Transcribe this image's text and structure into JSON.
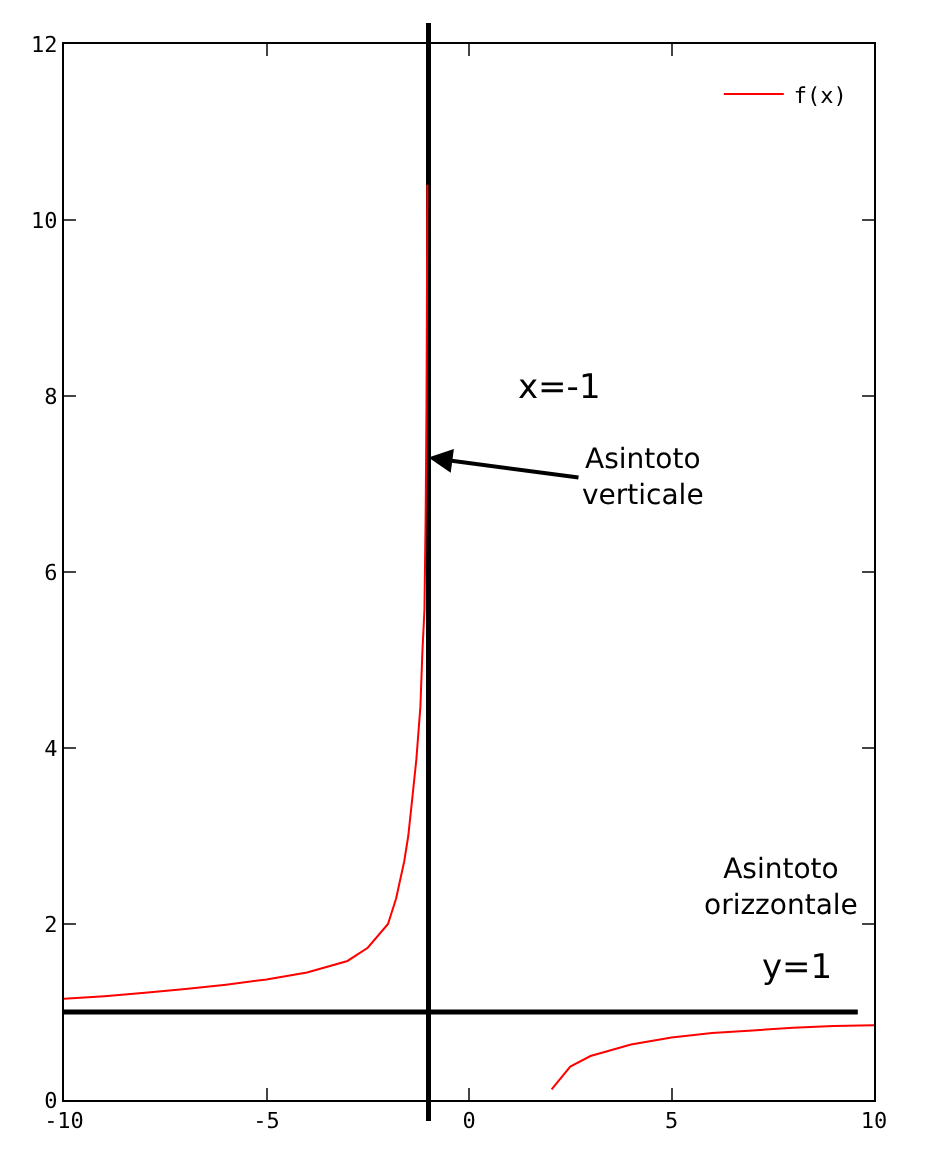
{
  "chart_data": {
    "type": "line",
    "x": [
      -10,
      -9,
      -8,
      -7,
      -6,
      -5,
      -4,
      -3,
      -2.5,
      -2,
      -1.8,
      -1.6,
      -1.5,
      -1.4,
      -1.3,
      -1.2,
      -1.15,
      -1.1,
      -1.07,
      -1.05,
      -1.04,
      -1.028,
      0,
      2.04,
      2.5,
      3,
      4,
      5,
      6,
      7,
      8,
      9,
      10
    ],
    "series": [
      {
        "name": "f(x)",
        "color": "#ff0000",
        "values": [
          1.15,
          1.18,
          1.22,
          1.26,
          1.31,
          1.37,
          1.45,
          1.58,
          1.73,
          2.0,
          2.29,
          2.71,
          3.0,
          3.43,
          3.87,
          4.47,
          5.1,
          5.57,
          6.65,
          7.87,
          8.83,
          10.4,
          null,
          0.12,
          0.38,
          0.5,
          0.63,
          0.71,
          0.76,
          0.79,
          0.82,
          0.84,
          0.85
        ]
      }
    ],
    "xlim": [
      -10,
      10
    ],
    "xticks": [
      -10,
      -5,
      0,
      5,
      10
    ],
    "ylim": [
      0,
      12
    ],
    "yticks": [
      0,
      2,
      4,
      6,
      8,
      10,
      12
    ],
    "grid": false,
    "legend": "top right",
    "marker": "none",
    "line_style": "solid",
    "ref_lines": [
      {
        "axis": "x",
        "value": -1,
        "label": "x=-1",
        "color": "#000000"
      },
      {
        "axis": "y",
        "value": 1,
        "label": "y=1",
        "color": "#000000"
      }
    ],
    "annotations": [
      {
        "text": "Asintoto verticale",
        "x": -1,
        "y": 7.3
      },
      "Asintoto orizzontale"
    ]
  }
}
